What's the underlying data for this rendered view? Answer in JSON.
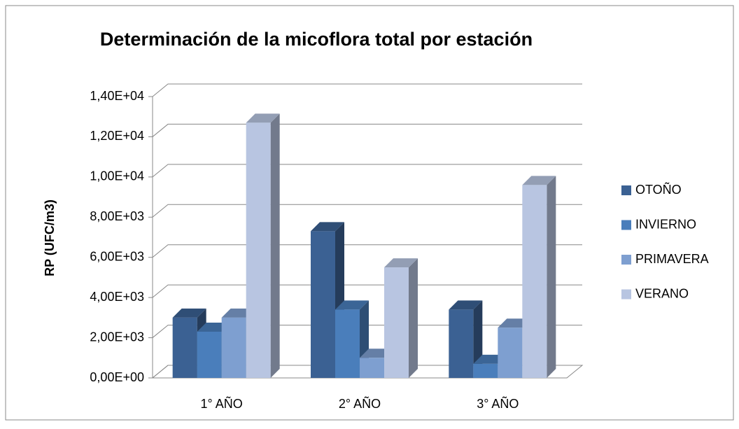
{
  "chart_data": {
    "type": "bar3d",
    "title": "Determinación de la micoflora total por estación",
    "y_label": "RP (UFC/m3)",
    "categories": [
      "1° AÑO",
      "2° AÑO",
      "3° AÑO"
    ],
    "series": [
      {
        "name": "OTOÑO",
        "color": "#3b6193",
        "values": [
          3000,
          7300,
          3400
        ]
      },
      {
        "name": "INVIERNO",
        "color": "#4a7ebb",
        "values": [
          2300,
          3400,
          700
        ]
      },
      {
        "name": "PRIMAVERA",
        "color": "#7e9fd0",
        "values": [
          3000,
          1000,
          2500
        ]
      },
      {
        "name": "VERANO",
        "color": "#b8c5e1",
        "values": [
          12700,
          5500,
          9600
        ]
      }
    ],
    "ylim": [
      0,
      14000
    ],
    "yticks": [
      {
        "value": 0,
        "label": "0,00E+00"
      },
      {
        "value": 2000,
        "label": "2,00E+03"
      },
      {
        "value": 4000,
        "label": "4,00E+03"
      },
      {
        "value": 6000,
        "label": "6,00E+03"
      },
      {
        "value": 8000,
        "label": "8,00E+03"
      },
      {
        "value": 10000,
        "label": "1,00E+04"
      },
      {
        "value": 12000,
        "label": "1,20E+04"
      },
      {
        "value": 14000,
        "label": "1,40E+04"
      }
    ],
    "grid": true,
    "legend": "right"
  }
}
